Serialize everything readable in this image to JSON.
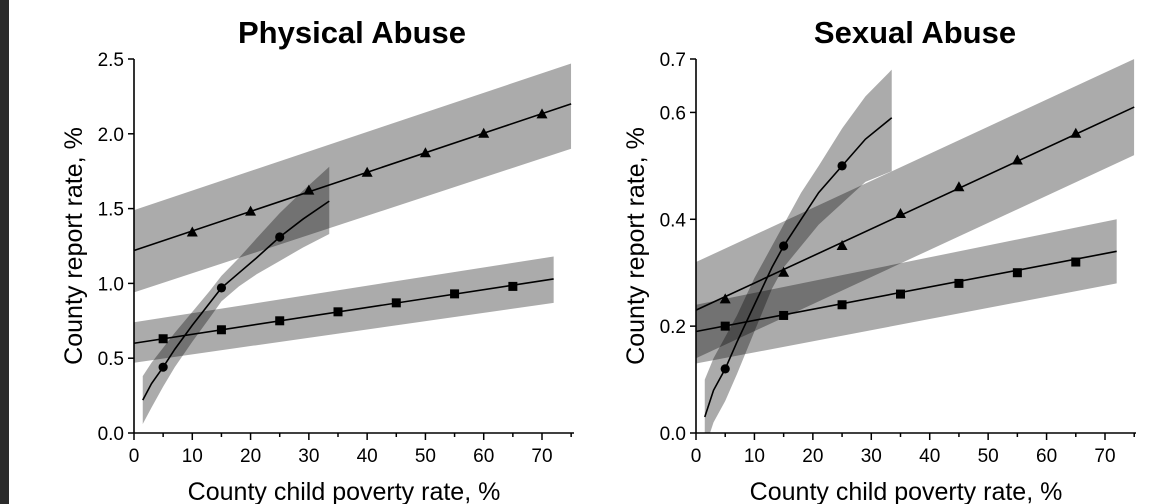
{
  "chart_data": [
    {
      "type": "line",
      "title": "Physical Abuse",
      "xlabel": "County child poverty rate, %",
      "ylabel": "County report rate, %",
      "xlim": [
        0,
        75
      ],
      "ylim": [
        0,
        2.5
      ],
      "x_ticks": [
        "0",
        "10",
        "20",
        "30",
        "40",
        "50",
        "60",
        "70"
      ],
      "y_ticks": [
        "0.0",
        "0.5",
        "1.0",
        "1.5",
        "2.0",
        "2.5"
      ],
      "grid": false,
      "series": [
        {
          "marker": "triangle",
          "x": [
            10,
            20,
            30,
            40,
            50,
            60,
            70
          ],
          "y": [
            1.34,
            1.48,
            1.62,
            1.74,
            1.87,
            2.0,
            2.13
          ],
          "fit_x": [
            0,
            75
          ],
          "fit_y": [
            1.22,
            2.2
          ],
          "ci_x": [
            0,
            75
          ],
          "ci_upper": [
            1.49,
            2.47
          ],
          "ci_lower": [
            0.94,
            1.9
          ]
        },
        {
          "marker": "circle",
          "x": [
            5,
            15,
            25
          ],
          "y": [
            0.44,
            0.97,
            1.31
          ],
          "fit_x": [
            1.5,
            3,
            5,
            7,
            10,
            13,
            15,
            18,
            21,
            25,
            29,
            33.5
          ],
          "fit_y": [
            0.22,
            0.33,
            0.44,
            0.56,
            0.72,
            0.87,
            0.97,
            1.07,
            1.17,
            1.31,
            1.43,
            1.55
          ],
          "ci_x": [
            1.5,
            3,
            5,
            7,
            10,
            13,
            15,
            18,
            21,
            25,
            29,
            33.5
          ],
          "ci_upper": [
            0.38,
            0.47,
            0.57,
            0.67,
            0.81,
            0.95,
            1.05,
            1.17,
            1.3,
            1.47,
            1.62,
            1.78
          ],
          "ci_lower": [
            0.06,
            0.17,
            0.31,
            0.44,
            0.61,
            0.77,
            0.88,
            0.98,
            1.06,
            1.15,
            1.24,
            1.33
          ]
        },
        {
          "marker": "square",
          "x": [
            5,
            15,
            25,
            35,
            45,
            55,
            65
          ],
          "y": [
            0.63,
            0.69,
            0.75,
            0.81,
            0.87,
            0.93,
            0.98
          ],
          "fit_x": [
            0,
            72
          ],
          "fit_y": [
            0.6,
            1.03
          ],
          "ci_x": [
            0,
            72
          ],
          "ci_upper": [
            0.74,
            1.18
          ],
          "ci_lower": [
            0.47,
            0.87
          ]
        }
      ]
    },
    {
      "type": "line",
      "title": "Sexual Abuse",
      "xlabel": "County child poverty rate, %",
      "ylabel": "County report rate, %",
      "xlim": [
        0,
        75
      ],
      "ylim": [
        0,
        0.7
      ],
      "x_ticks": [
        "0",
        "10",
        "20",
        "30",
        "40",
        "50",
        "60",
        "70"
      ],
      "y_ticks": [
        "0.0",
        "0.2",
        "0.4",
        "0.6",
        "0.7"
      ],
      "grid": false,
      "series": [
        {
          "marker": "triangle",
          "x": [
            5,
            15,
            25,
            35,
            45,
            55,
            65
          ],
          "y": [
            0.25,
            0.3,
            0.35,
            0.41,
            0.46,
            0.51,
            0.56
          ],
          "fit_x": [
            0,
            75
          ],
          "fit_y": [
            0.23,
            0.61
          ],
          "ci_x": [
            0,
            75
          ],
          "ci_upper": [
            0.32,
            0.7
          ],
          "ci_lower": [
            0.14,
            0.52
          ]
        },
        {
          "marker": "circle",
          "x": [
            5,
            15,
            25
          ],
          "y": [
            0.12,
            0.35,
            0.5
          ],
          "fit_x": [
            1.5,
            3,
            5,
            7,
            10,
            13,
            15,
            18,
            21,
            25,
            29,
            33.5
          ],
          "fit_y": [
            0.03,
            0.08,
            0.12,
            0.17,
            0.24,
            0.31,
            0.35,
            0.4,
            0.45,
            0.5,
            0.55,
            0.59
          ],
          "ci_x": [
            1.5,
            3,
            5,
            7,
            10,
            13,
            15,
            18,
            21,
            25,
            29,
            33.5
          ],
          "ci_upper": [
            0.1,
            0.14,
            0.18,
            0.22,
            0.29,
            0.35,
            0.39,
            0.45,
            0.5,
            0.57,
            0.63,
            0.68
          ],
          "ci_lower": [
            -0.03,
            0.02,
            0.06,
            0.11,
            0.19,
            0.27,
            0.31,
            0.35,
            0.39,
            0.43,
            0.47,
            0.49
          ]
        },
        {
          "marker": "square",
          "x": [
            5,
            15,
            25,
            35,
            45,
            55,
            65
          ],
          "y": [
            0.2,
            0.22,
            0.24,
            0.26,
            0.28,
            0.3,
            0.32
          ],
          "fit_x": [
            0,
            72
          ],
          "fit_y": [
            0.19,
            0.34
          ],
          "ci_x": [
            0,
            72
          ],
          "ci_upper": [
            0.24,
            0.4
          ],
          "ci_lower": [
            0.13,
            0.28
          ]
        }
      ]
    }
  ]
}
